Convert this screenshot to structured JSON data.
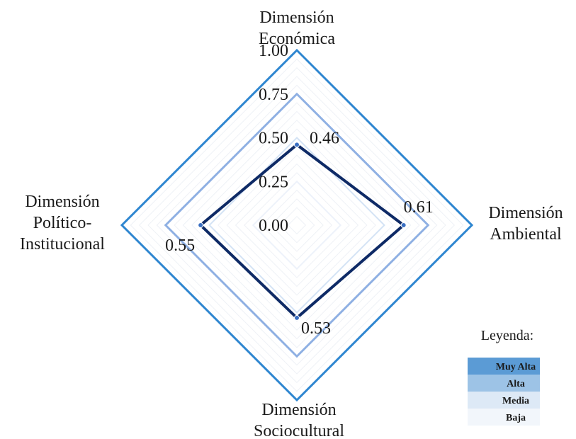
{
  "chart_data": {
    "type": "radar",
    "axes": [
      "Dimensión Económica",
      "Dimensión Ambiental",
      "Dimensión Sociocultural",
      "Dimensión Político-Institucional"
    ],
    "axis_label_lines": [
      [
        "Dimensión",
        "Económica"
      ],
      [
        "Dimensión",
        "Ambiental"
      ],
      [
        "Dimensión",
        "Sociocultural"
      ],
      [
        "Dimensión",
        "Político-",
        "Institucional"
      ]
    ],
    "range": [
      0,
      1
    ],
    "ticks": [
      "0.00",
      "0.25",
      "0.50",
      "0.75",
      "1.00"
    ],
    "tick_values": [
      0,
      0.25,
      0.5,
      0.75,
      1
    ],
    "values": [
      0.46,
      0.61,
      0.53,
      0.55
    ],
    "value_labels": [
      "0.46",
      "0.61",
      "0.53",
      "0.55"
    ],
    "series_color": "#0e2a66",
    "bands": [
      {
        "label": "Muy Alta",
        "level": 1.0,
        "color": "#2e86d0"
      },
      {
        "label": "Alta",
        "level": 0.75,
        "color": "#8fb0e3"
      },
      {
        "label": "Media",
        "level": 0.5,
        "color": "#d4e3f5"
      },
      {
        "label": "Baja",
        "level": 0.25,
        "color": "#edf2fa"
      }
    ],
    "legend": {
      "title": "Leyenda:",
      "position": "bottom-right",
      "swatch_colors": [
        "#5b9bd5",
        "#9dc3e6",
        "#dde9f6",
        "#f2f6fb"
      ]
    },
    "grid": true
  }
}
